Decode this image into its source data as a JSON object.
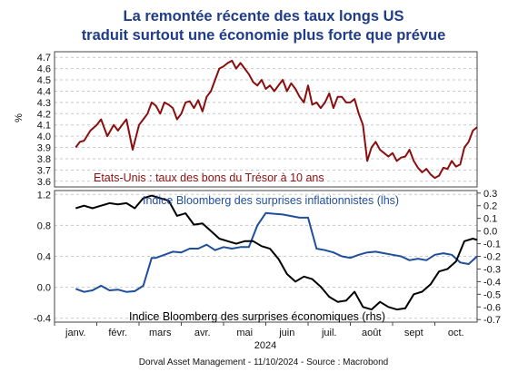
{
  "title_line1": "La remontée récente des taux longs US",
  "title_line2": "traduit surtout une économie plus forte que prévue",
  "footer": "Dorval Asset Management      -  11/10/2024  -   Source : Macrobond",
  "colors": {
    "title": "#1f3c88",
    "treasury": "#8b0e0e",
    "inflation": "#1f4e9c",
    "economic": "#000000"
  },
  "chart_data": [
    {
      "type": "line",
      "xlabel": "2024",
      "ylabel": "%",
      "months": [
        "janv.",
        "févr.",
        "mars",
        "avr.",
        "mai",
        "juin",
        "juil.",
        "août",
        "sept",
        "oct."
      ],
      "ylim": [
        3.55,
        4.75
      ],
      "yticks": [
        "3.6",
        "3.7",
        "3.8",
        "3.9",
        "4.0",
        "4.1",
        "4.2",
        "4.3",
        "4.4",
        "4.5",
        "4.6",
        "4.7"
      ],
      "grid": true,
      "series": [
        {
          "name": "Etats-Unis : taux des bons du Trésor à 10 ans",
          "color": "#8b0e0e",
          "x": [
            0,
            0.1,
            0.2,
            0.35,
            0.5,
            0.6,
            0.75,
            0.9,
            1.0,
            1.1,
            1.2,
            1.35,
            1.5,
            1.6,
            1.7,
            1.8,
            1.9,
            2.0,
            2.1,
            2.2,
            2.3,
            2.4,
            2.5,
            2.6,
            2.7,
            2.8,
            2.9,
            3.0,
            3.1,
            3.2,
            3.3,
            3.4,
            3.5,
            3.6,
            3.7,
            3.8,
            3.9,
            4.0,
            4.1,
            4.2,
            4.3,
            4.4,
            4.5,
            4.6,
            4.7,
            4.8,
            4.9,
            5.0,
            5.1,
            5.2,
            5.3,
            5.4,
            5.5,
            5.6,
            5.7,
            5.8,
            5.9,
            6.0,
            6.1,
            6.2,
            6.3,
            6.4,
            6.5,
            6.6,
            6.7,
            6.8,
            6.9,
            7.0,
            7.1,
            7.2,
            7.3,
            7.4,
            7.5,
            7.6,
            7.7,
            7.8,
            7.9,
            8.0,
            8.1,
            8.2,
            8.3,
            8.4,
            8.5,
            8.6,
            8.7,
            8.8,
            8.9,
            9.0,
            9.1,
            9.2,
            9.3,
            9.4,
            9.5
          ],
          "values": [
            3.9,
            3.95,
            3.96,
            4.05,
            4.1,
            4.15,
            4.0,
            4.1,
            4.05,
            4.1,
            4.15,
            3.88,
            4.1,
            4.15,
            4.2,
            4.3,
            4.27,
            4.2,
            4.3,
            4.28,
            4.25,
            4.15,
            4.2,
            4.3,
            4.31,
            4.25,
            4.32,
            4.22,
            4.35,
            4.4,
            4.5,
            4.6,
            4.62,
            4.65,
            4.67,
            4.6,
            4.65,
            4.6,
            4.55,
            4.48,
            4.45,
            4.5,
            4.42,
            4.45,
            4.4,
            4.45,
            4.5,
            4.4,
            4.47,
            4.42,
            4.35,
            4.3,
            4.45,
            4.28,
            4.3,
            4.25,
            4.3,
            4.38,
            4.25,
            4.35,
            4.35,
            4.3,
            4.3,
            4.33,
            4.2,
            4.1,
            3.78,
            3.9,
            3.95,
            3.88,
            3.85,
            3.82,
            3.85,
            3.78,
            3.81,
            3.82,
            3.88,
            3.78,
            3.72,
            3.68,
            3.71,
            3.66,
            3.63,
            3.65,
            3.72,
            3.71,
            3.78,
            3.73,
            3.75,
            3.9,
            3.95,
            4.05,
            4.08
          ]
        }
      ]
    },
    {
      "type": "line",
      "xlabel": "2024",
      "months": [
        "janv.",
        "févr.",
        "mars",
        "avr.",
        "mai",
        "juin",
        "juil.",
        "août",
        "sept",
        "oct."
      ],
      "ylim_left": [
        -0.45,
        1.25
      ],
      "yticks_left": [
        "-0.4",
        "0.0",
        "0.4",
        "0.8",
        "1.2"
      ],
      "ylim_right": [
        -0.72,
        0.32
      ],
      "yticks_right": [
        "0.3",
        "0.2",
        "0.1",
        "0.0",
        "-0.1",
        "-0.2",
        "-0.3",
        "-0.4",
        "-0.5",
        "-0.6",
        "-0.7"
      ],
      "grid": true,
      "series": [
        {
          "name": "Indice Bloomberg des surprises inflationnistes (lhs)",
          "axis": "left",
          "color": "#1f4e9c",
          "x": [
            0,
            0.2,
            0.4,
            0.6,
            0.8,
            1.0,
            1.2,
            1.4,
            1.6,
            1.8,
            1.9,
            2.1,
            2.3,
            2.5,
            2.7,
            2.9,
            3.1,
            3.3,
            3.5,
            3.7,
            3.9,
            4.1,
            4.3,
            4.5,
            4.7,
            4.9,
            5.1,
            5.3,
            5.5,
            5.7,
            5.9,
            6.1,
            6.3,
            6.5,
            6.7,
            6.9,
            7.1,
            7.3,
            7.5,
            7.7,
            7.9,
            8.1,
            8.3,
            8.5,
            8.7,
            8.9,
            9.1,
            9.3,
            9.5
          ],
          "values": [
            -0.02,
            -0.06,
            -0.04,
            0.02,
            -0.04,
            -0.03,
            -0.06,
            -0.05,
            0.02,
            0.38,
            0.38,
            0.42,
            0.46,
            0.45,
            0.5,
            0.5,
            0.55,
            0.48,
            0.52,
            0.5,
            0.52,
            0.52,
            0.8,
            0.96,
            0.95,
            0.94,
            0.92,
            0.9,
            0.9,
            0.5,
            0.48,
            0.45,
            0.4,
            0.38,
            0.42,
            0.45,
            0.46,
            0.44,
            0.42,
            0.4,
            0.35,
            0.37,
            0.35,
            0.42,
            0.44,
            0.42,
            0.32,
            0.3,
            0.4
          ]
        },
        {
          "name": "Indice Bloomberg des surprises économiques (rhs)",
          "axis": "right",
          "color": "#000000",
          "x": [
            0,
            0.2,
            0.4,
            0.6,
            0.8,
            1.0,
            1.2,
            1.4,
            1.6,
            1.8,
            2.0,
            2.2,
            2.4,
            2.6,
            2.8,
            3.0,
            3.2,
            3.4,
            3.6,
            3.8,
            4.0,
            4.2,
            4.4,
            4.6,
            4.8,
            5.0,
            5.2,
            5.4,
            5.6,
            5.8,
            6.0,
            6.2,
            6.4,
            6.6,
            6.8,
            7.0,
            7.2,
            7.4,
            7.6,
            7.8,
            8.0,
            8.2,
            8.4,
            8.6,
            8.8,
            9.0,
            9.2,
            9.4,
            9.5
          ],
          "values": [
            0.18,
            0.2,
            0.18,
            0.2,
            0.22,
            0.21,
            0.22,
            0.18,
            0.26,
            0.28,
            0.26,
            0.24,
            0.12,
            0.14,
            0.05,
            0.06,
            0.0,
            -0.06,
            -0.08,
            -0.1,
            -0.08,
            -0.08,
            -0.12,
            -0.14,
            -0.22,
            -0.34,
            -0.4,
            -0.36,
            -0.38,
            -0.44,
            -0.52,
            -0.56,
            -0.55,
            -0.48,
            -0.6,
            -0.62,
            -0.56,
            -0.6,
            -0.62,
            -0.61,
            -0.5,
            -0.48,
            -0.42,
            -0.32,
            -0.3,
            -0.24,
            -0.08,
            -0.06,
            -0.07
          ]
        }
      ]
    }
  ]
}
